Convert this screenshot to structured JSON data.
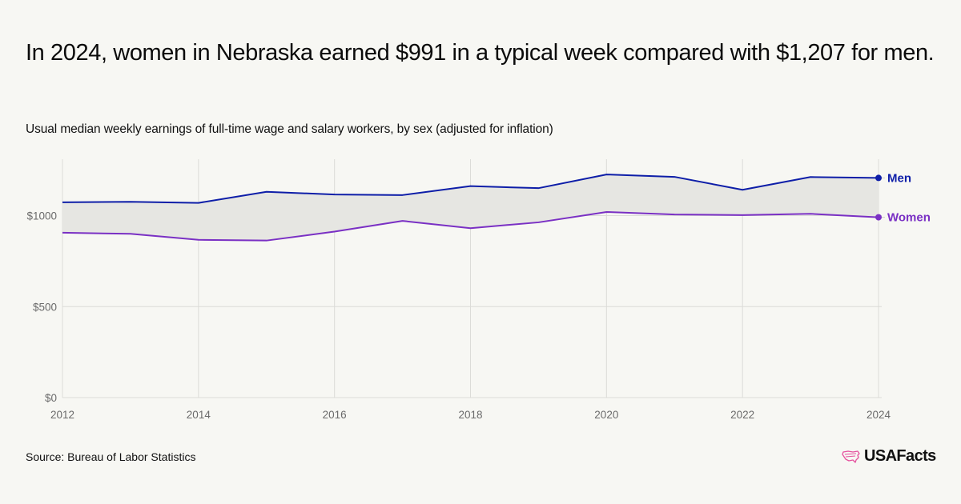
{
  "header": {
    "title": "In 2024, women in Nebraska earned $991 in a typical week compared with $1,207 for men.",
    "subtitle": "Usual median weekly earnings of full-time wage and salary workers, by sex (adjusted for inflation)"
  },
  "footer": {
    "source": "Source: Bureau of Labor Statistics",
    "logo_text": "USAFacts"
  },
  "chart_data": {
    "type": "line",
    "title": "In 2024, women in Nebraska earned $991 in a typical week compared with $1,207 for men.",
    "subtitle": "Usual median weekly earnings of full-time wage and salary workers, by sex (adjusted for inflation)",
    "xlabel": "",
    "ylabel": "",
    "x": [
      2012,
      2013,
      2014,
      2015,
      2016,
      2017,
      2018,
      2019,
      2020,
      2021,
      2022,
      2023,
      2024
    ],
    "xlim": [
      2012,
      2024
    ],
    "ylim": [
      0,
      1310
    ],
    "x_ticks": [
      {
        "value": 2012,
        "label": "2012"
      },
      {
        "value": 2014,
        "label": "2014"
      },
      {
        "value": 2016,
        "label": "2016"
      },
      {
        "value": 2018,
        "label": "2018"
      },
      {
        "value": 2020,
        "label": "2020"
      },
      {
        "value": 2022,
        "label": "2022"
      },
      {
        "value": 2024,
        "label": "2024"
      }
    ],
    "y_ticks": [
      {
        "value": 0,
        "label": "$0"
      },
      {
        "value": 500,
        "label": "$500"
      },
      {
        "value": 1000,
        "label": "$1000"
      }
    ],
    "grid": true,
    "shade_between_series": true,
    "legend_placement": "right, at line ends",
    "series": [
      {
        "name": "Men",
        "color": "#0e1ea8",
        "values": [
          1073,
          1076,
          1070,
          1131,
          1116,
          1113,
          1162,
          1151,
          1226,
          1213,
          1142,
          1212,
          1207
        ]
      },
      {
        "name": "Women",
        "color": "#7a30c4",
        "values": [
          906,
          900,
          867,
          863,
          912,
          971,
          931,
          963,
          1020,
          1006,
          1003,
          1010,
          991
        ]
      }
    ],
    "colors": {
      "band": "#e6e6e2",
      "grid": "#dcdcd8",
      "tick_text": "#6b6b6b",
      "logo_accent": "#e5529e"
    }
  }
}
